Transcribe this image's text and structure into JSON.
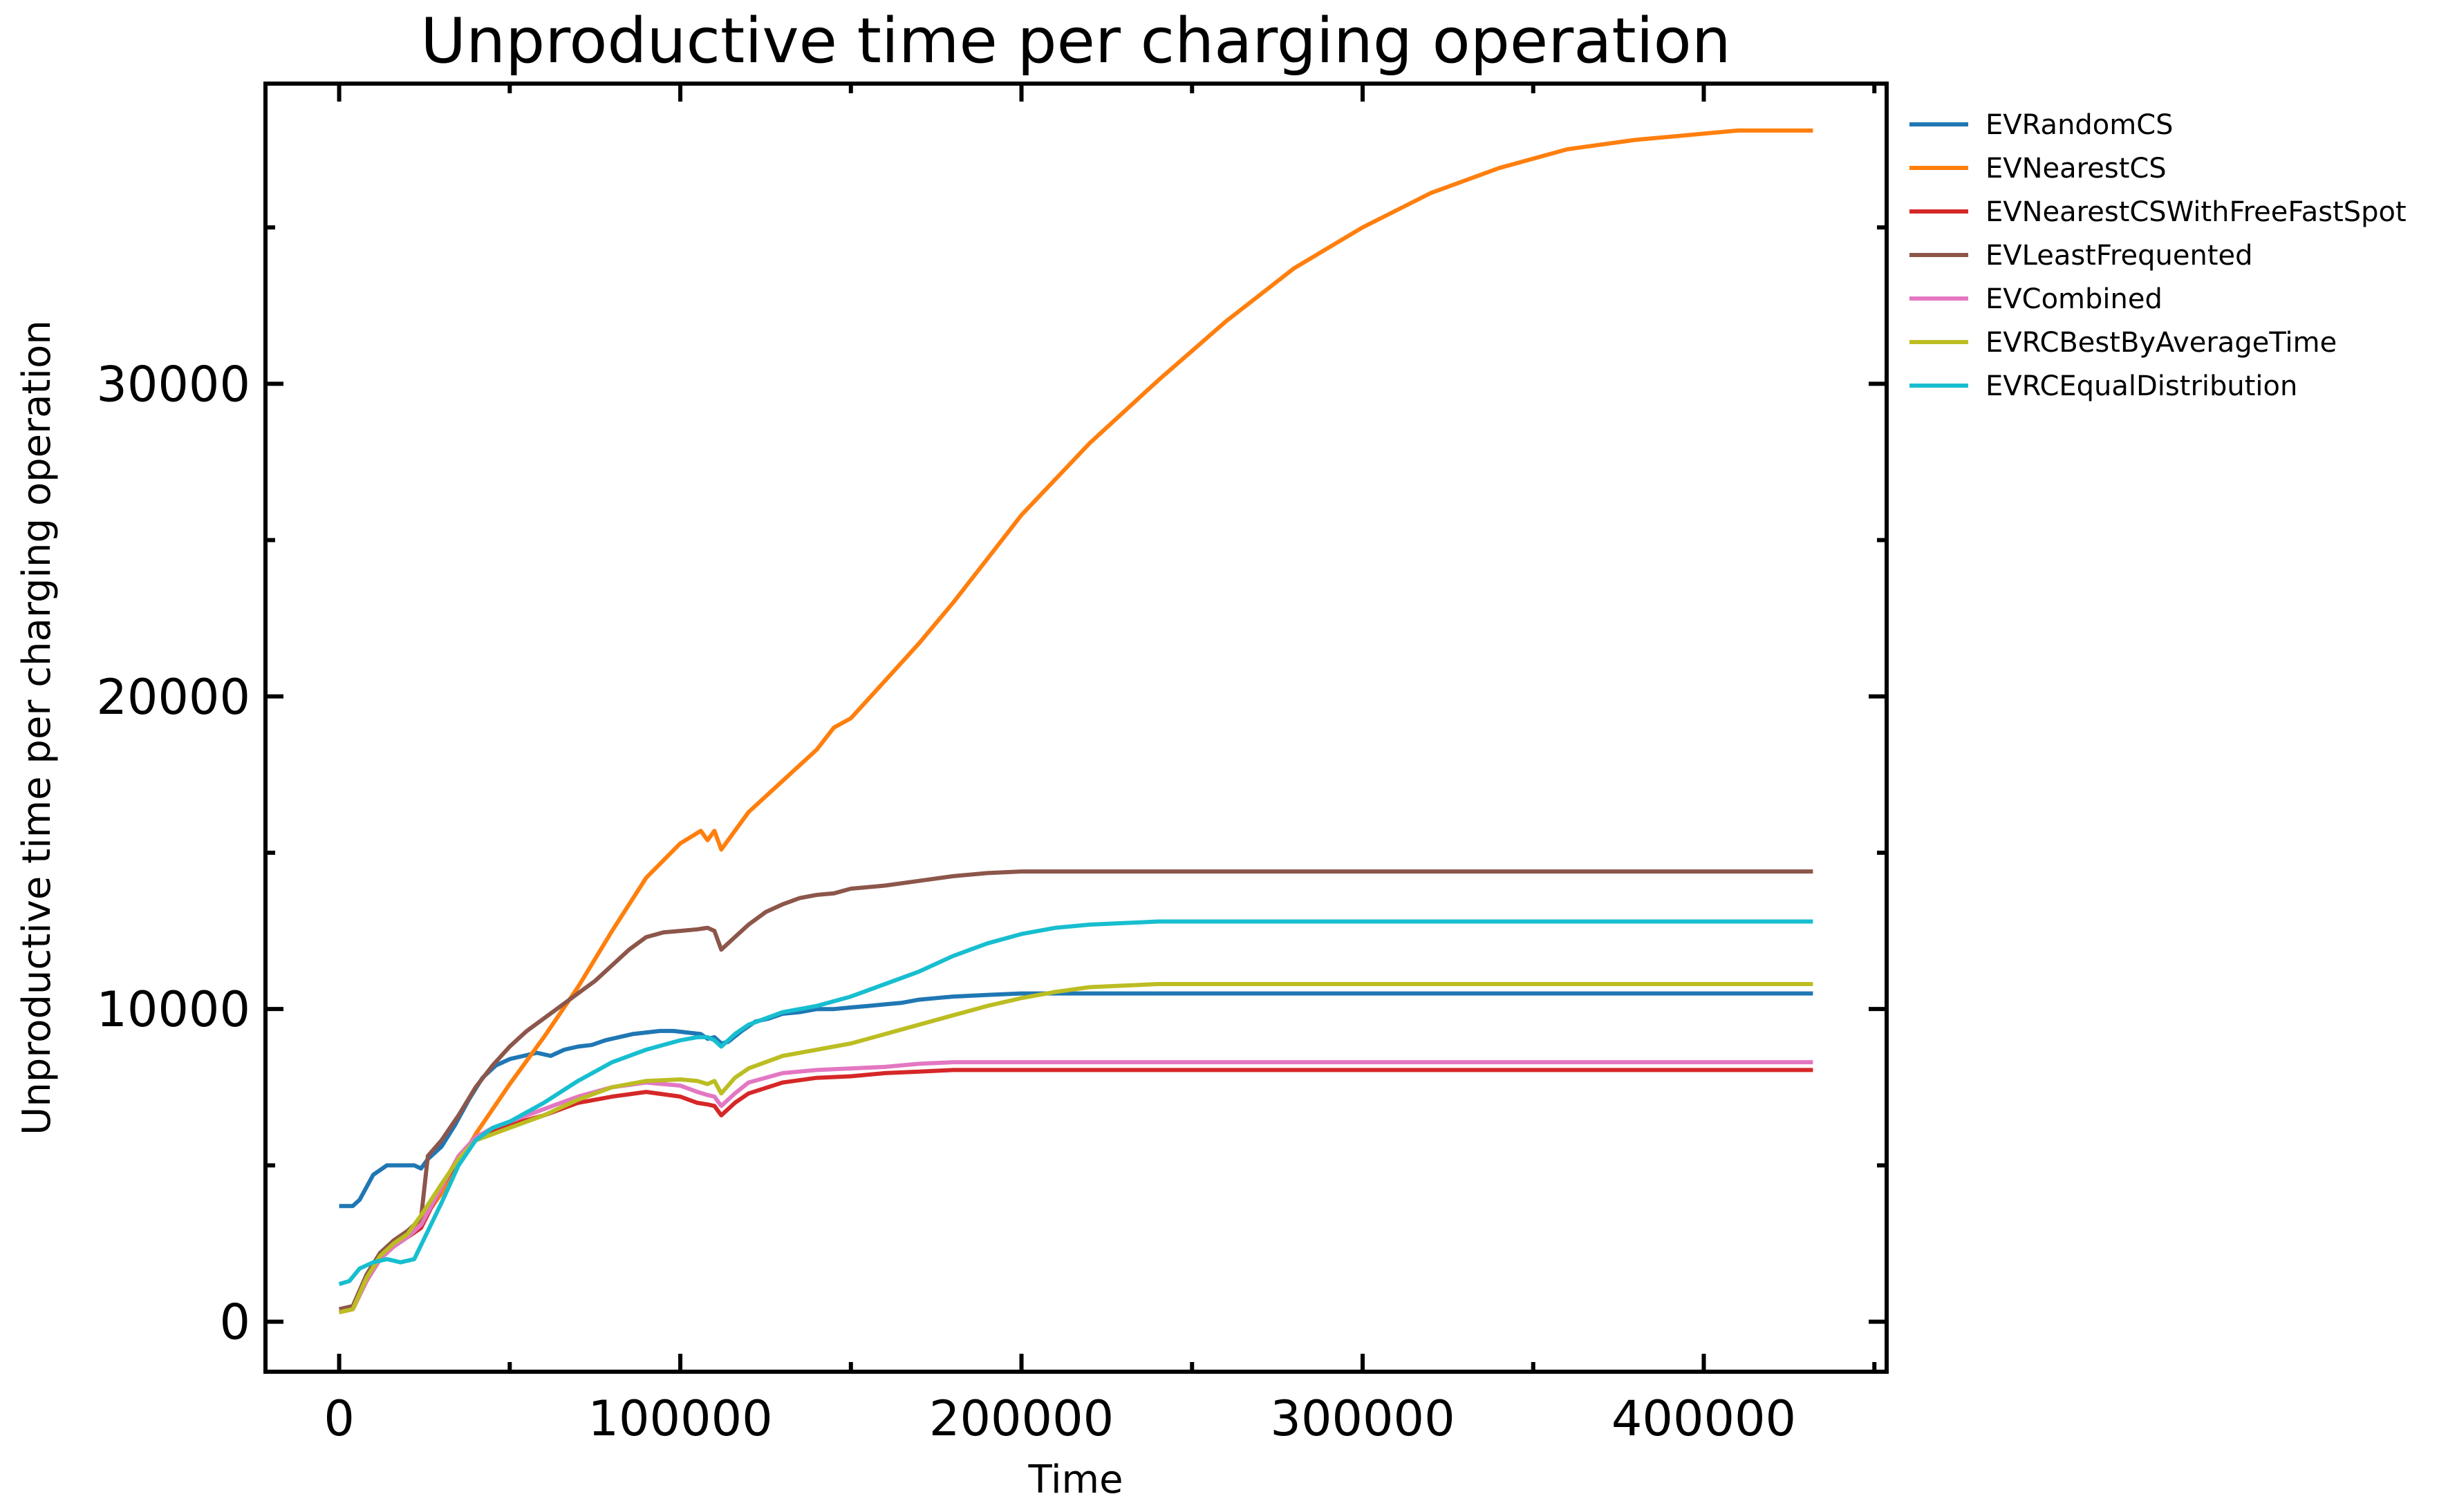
{
  "chart_data": {
    "type": "line",
    "title": "Unproductive time per charging operation",
    "xlabel": "Time",
    "ylabel": "Unproductive time per charging operation",
    "xlim": [
      -21600,
      453600
    ],
    "ylim": [
      -1600,
      39600
    ],
    "xticks": [
      0,
      100000,
      200000,
      300000,
      400000
    ],
    "xtick_labels": [
      "0",
      "100000",
      "200000",
      "300000",
      "400000"
    ],
    "yticks": [
      0,
      10000,
      20000,
      30000
    ],
    "ytick_labels": [
      "0",
      "10000",
      "20000",
      "30000"
    ],
    "grid": false,
    "legend_position": "outside-top-right",
    "series": [
      {
        "name": "EVRandomCS",
        "color": "#1f77b4",
        "x": [
          0,
          4000,
          6000,
          10000,
          14000,
          18000,
          22000,
          24000,
          26000,
          30000,
          34000,
          38000,
          42000,
          46000,
          50000,
          54000,
          58000,
          62000,
          66000,
          70000,
          74000,
          78000,
          82000,
          86000,
          90000,
          94000,
          98000,
          102000,
          106000,
          108000,
          110000,
          112000,
          114000,
          118000,
          122000,
          126000,
          130000,
          135000,
          140000,
          145000,
          150000,
          155000,
          160000,
          165000,
          170000,
          175000,
          180000,
          190000,
          200000,
          210000,
          220000,
          250000,
          300000,
          350000,
          400000,
          432000
        ],
        "y": [
          3700,
          3700,
          3900,
          4700,
          5000,
          5000,
          5000,
          4900,
          5200,
          5600,
          6300,
          7100,
          7800,
          8200,
          8400,
          8500,
          8600,
          8500,
          8700,
          8800,
          8850,
          9000,
          9100,
          9200,
          9250,
          9300,
          9300,
          9250,
          9200,
          9050,
          9100,
          8900,
          8950,
          9300,
          9600,
          9700,
          9850,
          9900,
          10000,
          10000,
          10050,
          10100,
          10150,
          10200,
          10300,
          10350,
          10400,
          10450,
          10500,
          10500,
          10500,
          10500,
          10500,
          10500,
          10500,
          10500
        ]
      },
      {
        "name": "EVNearestCS",
        "color": "#ff7f0e",
        "x": [
          0,
          4000,
          8000,
          12000,
          16000,
          20000,
          24000,
          30000,
          40000,
          50000,
          60000,
          70000,
          80000,
          90000,
          100000,
          106000,
          108000,
          110000,
          112000,
          116000,
          120000,
          130000,
          140000,
          145000,
          150000,
          160000,
          170000,
          180000,
          190000,
          200000,
          220000,
          240000,
          260000,
          280000,
          300000,
          320000,
          340000,
          360000,
          380000,
          400000,
          410000,
          420000,
          432000
        ],
        "y": [
          300,
          400,
          1300,
          2000,
          2500,
          2800,
          3200,
          4100,
          6000,
          7600,
          9100,
          10700,
          12500,
          14200,
          15300,
          15700,
          15400,
          15700,
          15100,
          15700,
          16300,
          17300,
          18300,
          19000,
          19300,
          20500,
          21700,
          23000,
          24400,
          25800,
          28100,
          30100,
          32000,
          33700,
          35000,
          36100,
          36900,
          37500,
          37800,
          38000,
          38100,
          38100,
          38100
        ]
      },
      {
        "name": "EVNearestCSWithFreeFastSpot",
        "color": "#d62728",
        "x": [
          0,
          4000,
          8000,
          12000,
          16000,
          20000,
          24000,
          30000,
          35000,
          40000,
          45000,
          50000,
          60000,
          70000,
          80000,
          90000,
          100000,
          105000,
          108000,
          110000,
          112000,
          116000,
          120000,
          130000,
          140000,
          150000,
          160000,
          170000,
          180000,
          200000,
          250000,
          300000,
          350000,
          400000,
          432000
        ],
        "y": [
          300,
          400,
          1300,
          2000,
          2500,
          2700,
          3000,
          4300,
          5200,
          5800,
          6100,
          6300,
          6600,
          7000,
          7200,
          7350,
          7200,
          7000,
          6950,
          6900,
          6600,
          7000,
          7300,
          7650,
          7800,
          7850,
          7950,
          8000,
          8050,
          8050,
          8050,
          8050,
          8050,
          8050,
          8050
        ]
      },
      {
        "name": "EVLeastFrequented",
        "color": "#8c564b",
        "x": [
          0,
          4000,
          8000,
          12000,
          16000,
          20000,
          24000,
          26000,
          30000,
          35000,
          40000,
          45000,
          50000,
          55000,
          60000,
          65000,
          70000,
          75000,
          80000,
          85000,
          90000,
          95000,
          100000,
          105000,
          108000,
          110000,
          112000,
          116000,
          120000,
          125000,
          130000,
          135000,
          140000,
          145000,
          150000,
          160000,
          170000,
          180000,
          190000,
          200000,
          250000,
          300000,
          350000,
          400000,
          432000
        ],
        "y": [
          400,
          500,
          1500,
          2200,
          2600,
          2900,
          3300,
          5300,
          5800,
          6600,
          7500,
          8200,
          8800,
          9300,
          9700,
          10100,
          10500,
          10900,
          11400,
          11900,
          12300,
          12450,
          12500,
          12550,
          12600,
          12500,
          11900,
          12300,
          12700,
          13100,
          13350,
          13550,
          13650,
          13700,
          13850,
          13950,
          14100,
          14250,
          14350,
          14400,
          14400,
          14400,
          14400,
          14400,
          14400
        ]
      },
      {
        "name": "EVCombined",
        "color": "#e377c2",
        "x": [
          0,
          4000,
          8000,
          12000,
          16000,
          20000,
          24000,
          30000,
          35000,
          40000,
          45000,
          50000,
          60000,
          70000,
          80000,
          90000,
          100000,
          105000,
          108000,
          110000,
          112000,
          116000,
          120000,
          130000,
          140000,
          150000,
          160000,
          170000,
          180000,
          200000,
          250000,
          300000,
          350000,
          400000,
          432000
        ],
        "y": [
          300,
          400,
          1300,
          2000,
          2400,
          2700,
          3100,
          4300,
          5300,
          5900,
          6200,
          6400,
          6800,
          7200,
          7500,
          7650,
          7550,
          7350,
          7250,
          7200,
          6900,
          7300,
          7650,
          7950,
          8050,
          8100,
          8150,
          8250,
          8300,
          8300,
          8300,
          8300,
          8300,
          8300,
          8300
        ]
      },
      {
        "name": "EVRCBestByAverageTime",
        "color": "#bcbd22",
        "x": [
          0,
          4000,
          8000,
          12000,
          16000,
          20000,
          24000,
          30000,
          35000,
          40000,
          45000,
          50000,
          60000,
          70000,
          80000,
          90000,
          100000,
          105000,
          108000,
          110000,
          112000,
          116000,
          120000,
          130000,
          140000,
          150000,
          160000,
          170000,
          180000,
          190000,
          200000,
          210000,
          220000,
          230000,
          240000,
          250000,
          300000,
          350000,
          400000,
          432000
        ],
        "y": [
          300,
          400,
          1400,
          2100,
          2500,
          2800,
          3400,
          4400,
          5200,
          5800,
          6000,
          6200,
          6600,
          7100,
          7500,
          7700,
          7750,
          7700,
          7600,
          7700,
          7300,
          7800,
          8100,
          8500,
          8700,
          8900,
          9200,
          9500,
          9800,
          10100,
          10350,
          10550,
          10700,
          10750,
          10800,
          10800,
          10800,
          10800,
          10800,
          10800
        ]
      },
      {
        "name": "EVRCEqualDistribution",
        "color": "#17becf",
        "x": [
          0,
          3000,
          6000,
          10000,
          14000,
          18000,
          22000,
          26000,
          30000,
          35000,
          40000,
          45000,
          50000,
          55000,
          60000,
          70000,
          80000,
          90000,
          100000,
          105000,
          108000,
          110000,
          112000,
          116000,
          120000,
          130000,
          140000,
          150000,
          160000,
          170000,
          180000,
          190000,
          200000,
          210000,
          220000,
          230000,
          240000,
          250000,
          300000,
          350000,
          400000,
          432000
        ],
        "y": [
          1200,
          1300,
          1700,
          1900,
          2000,
          1900,
          2000,
          2900,
          3800,
          5000,
          5800,
          6200,
          6400,
          6700,
          7000,
          7700,
          8300,
          8700,
          9000,
          9100,
          9100,
          9000,
          8800,
          9200,
          9500,
          9900,
          10100,
          10400,
          10800,
          11200,
          11700,
          12100,
          12400,
          12600,
          12700,
          12750,
          12800,
          12800,
          12800,
          12800,
          12800,
          12800
        ]
      }
    ]
  }
}
